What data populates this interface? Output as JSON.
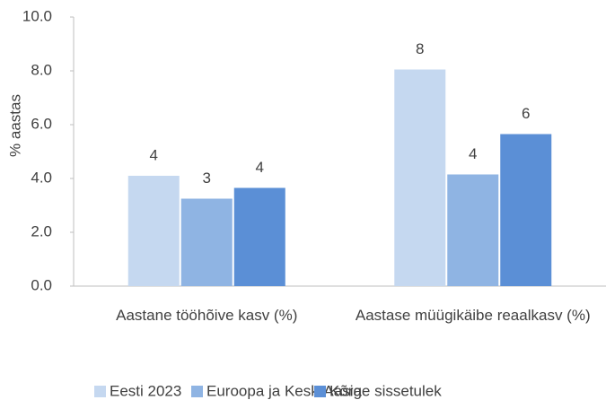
{
  "chart_data": {
    "type": "bar",
    "y_label": "% aastas",
    "categories": [
      "Aastane tööhõive kasv (%)",
      "Aastase müügikäibe reaalkasv (%)"
    ],
    "series": [
      {
        "name": "Eesti 2023",
        "color": "#c5d8f0",
        "values": [
          4.1,
          8.05
        ],
        "value_labels": [
          "4",
          "8"
        ]
      },
      {
        "name": "Euroopa ja Kesk-Aasia",
        "color": "#8fb4e3",
        "values": [
          3.25,
          4.15
        ],
        "value_labels": [
          "3",
          "4"
        ]
      },
      {
        "name": "Kõrge sissetulek",
        "color": "#5b8fd6",
        "values": [
          3.65,
          5.65
        ],
        "value_labels": [
          "4",
          "6"
        ]
      }
    ],
    "ylim": [
      0,
      10
    ],
    "yticks": [
      {
        "value": 0,
        "label": "0.0"
      },
      {
        "value": 2,
        "label": "2.0"
      },
      {
        "value": 4,
        "label": "4.0"
      },
      {
        "value": 6,
        "label": "6.0"
      },
      {
        "value": 8,
        "label": "8.0"
      },
      {
        "value": 10,
        "label": "10.0"
      }
    ],
    "legend": "bottom"
  }
}
